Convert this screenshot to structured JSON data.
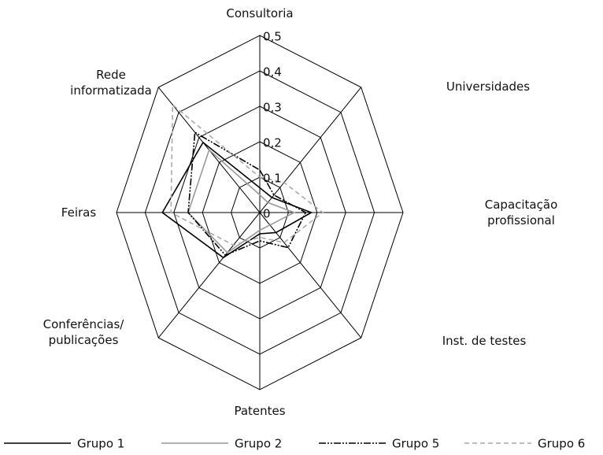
{
  "chart_data": {
    "type": "radar",
    "categories": [
      "Consultoria",
      "Universidades",
      "Capacitação\nprofissional",
      "Inst. de testes",
      "Patentes",
      "Conferências/\npublicações",
      "Feiras",
      "Rede\ninformatizada"
    ],
    "rlim": [
      0,
      0.5
    ],
    "rticks": [
      0,
      {
        "value": 0.1,
        "label": "0,1"
      },
      {
        "value": 0.2,
        "label": "0,2"
      },
      {
        "value": 0.3,
        "label": "0,3"
      },
      {
        "value": 0.4,
        "label": "0,4"
      },
      {
        "value": 0.5,
        "label": "0,5"
      }
    ],
    "series": [
      {
        "name": "Grupo 1",
        "color": "#000000",
        "dash": "none",
        "values": [
          0.07,
          0.06,
          0.18,
          0.08,
          0.06,
          0.18,
          0.34,
          0.28
        ]
      },
      {
        "name": "Grupo 2",
        "color": "#999999",
        "dash": "none",
        "values": [
          0.05,
          0.04,
          0.12,
          0.05,
          0.05,
          0.16,
          0.25,
          0.25
        ]
      },
      {
        "name": "Grupo 5",
        "color": "#000000",
        "dash": "9,2,2,2,2,2",
        "values": [
          0.12,
          0.07,
          0.16,
          0.14,
          0.08,
          0.17,
          0.25,
          0.32
        ]
      },
      {
        "name": "Grupo 6",
        "color": "#aaaaaa",
        "dash": "6,4",
        "values": [
          0.1,
          0.12,
          0.22,
          0.12,
          0.07,
          0.13,
          0.31,
          0.43
        ]
      }
    ]
  }
}
